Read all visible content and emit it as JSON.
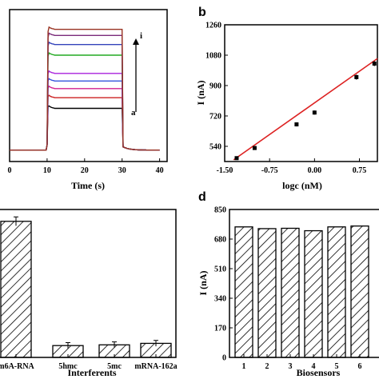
{
  "colors": {
    "fit_line": "#dd2222",
    "points": "#000000",
    "hatch": "#000000",
    "background": "#ffffff"
  },
  "chart_data": [
    {
      "panel": "a",
      "type": "line",
      "xlabel": "Time (s)",
      "ylabel": "",
      "xlim": [
        0,
        42
      ],
      "ylim": [
        0,
        10
      ],
      "xticks": [
        "0",
        "10",
        "20",
        "30",
        "40"
      ],
      "series": [
        {
          "color": "#000000",
          "baseline": 0.75,
          "plateau": 3.5
        },
        {
          "color": "#cc2222",
          "baseline": 0.75,
          "plateau": 4.2
        },
        {
          "color": "#d02090",
          "baseline": 0.75,
          "plateau": 4.8
        },
        {
          "color": "#3355dd",
          "baseline": 0.75,
          "plateau": 5.3
        },
        {
          "color": "#aa22dd",
          "baseline": 0.75,
          "plateau": 5.8
        },
        {
          "color": "#22aa22",
          "baseline": 0.75,
          "plateau": 7.0
        },
        {
          "color": "#3344bb",
          "baseline": 0.75,
          "plateau": 7.7
        },
        {
          "color": "#7a2a7a",
          "baseline": 0.75,
          "plateau": 8.3
        },
        {
          "color": "#993322",
          "baseline": 0.75,
          "plateau": 8.7
        }
      ],
      "annotations": {
        "top": "i",
        "bottom": "a"
      }
    },
    {
      "panel": "b",
      "type": "scatter",
      "xlabel": "logc (nM)",
      "ylabel": "I (nA)",
      "xlim": [
        -1.5,
        1.05
      ],
      "ylim": [
        450,
        1260
      ],
      "xticks": [
        -1.5,
        -0.75,
        0.0,
        0.75
      ],
      "xtick_labels": [
        "-1.50",
        "-0.75",
        "0.00",
        "0.75"
      ],
      "yticks": [
        540,
        720,
        900,
        1080,
        1260
      ],
      "x": [
        -1.3,
        -1.0,
        -0.3,
        0.0,
        0.7,
        1.0
      ],
      "y": [
        470,
        530,
        670,
        740,
        950,
        1030
      ],
      "errors": [
        8,
        8,
        12,
        12,
        15,
        15
      ],
      "fit": {
        "x": [
          -1.35,
          1.05
        ],
        "y": [
          460,
          1060
        ]
      }
    },
    {
      "panel": "c",
      "type": "bar",
      "xlabel": "Interferents",
      "ylabel": "",
      "categories": [
        "m6A-RNA",
        "5hmc",
        "5mc",
        "mRNA-162a"
      ],
      "values": [
        0.92,
        0.08,
        0.085,
        0.095
      ],
      "errors": [
        0.03,
        0.02,
        0.02,
        0.02
      ],
      "ylim": [
        0,
        1
      ]
    },
    {
      "panel": "d",
      "type": "bar",
      "xlabel": "Biosensors",
      "ylabel": "I (nA)",
      "categories": [
        "1",
        "2",
        "3",
        "4",
        "5",
        "6"
      ],
      "values": [
        750,
        740,
        742,
        728,
        750,
        755
      ],
      "ylim": [
        0,
        850
      ],
      "yticks": [
        0,
        170,
        340,
        510,
        680,
        850
      ]
    }
  ],
  "panel_labels": {
    "b": "b",
    "d": "d"
  }
}
